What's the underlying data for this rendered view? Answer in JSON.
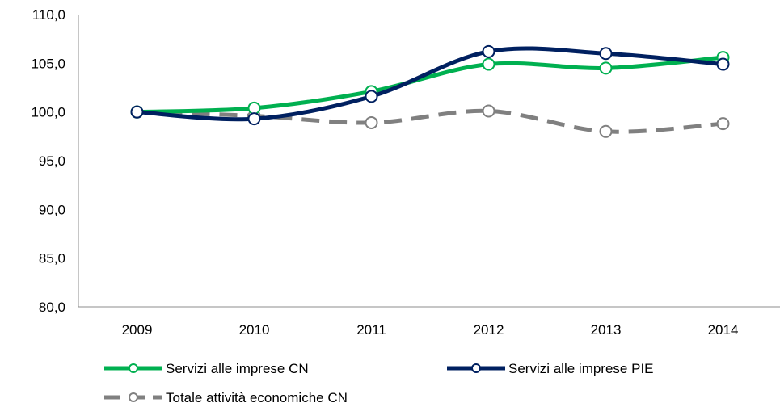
{
  "chart_data": {
    "type": "line",
    "categories": [
      "2009",
      "2010",
      "2011",
      "2012",
      "2013",
      "2014"
    ],
    "ylim": [
      80,
      110
    ],
    "yticks": [
      "80,0",
      "85,0",
      "90,0",
      "95,0",
      "100,0",
      "105,0",
      "110,0"
    ],
    "grid": false,
    "legend_position": "bottom",
    "series": [
      {
        "name": "Servizi alle imprese CN",
        "values": [
          100.0,
          100.4,
          102.1,
          104.9,
          104.5,
          105.6
        ],
        "color": "#00b050",
        "style": "solid"
      },
      {
        "name": "Servizi alle imprese PIE",
        "values": [
          100.0,
          99.3,
          101.6,
          106.2,
          106.0,
          104.9
        ],
        "color": "#002060",
        "style": "solid"
      },
      {
        "name": "Totale attività economiche CN",
        "values": [
          100.0,
          99.6,
          98.9,
          100.1,
          98.0,
          98.8
        ],
        "color": "#808080",
        "style": "dashed"
      }
    ]
  }
}
